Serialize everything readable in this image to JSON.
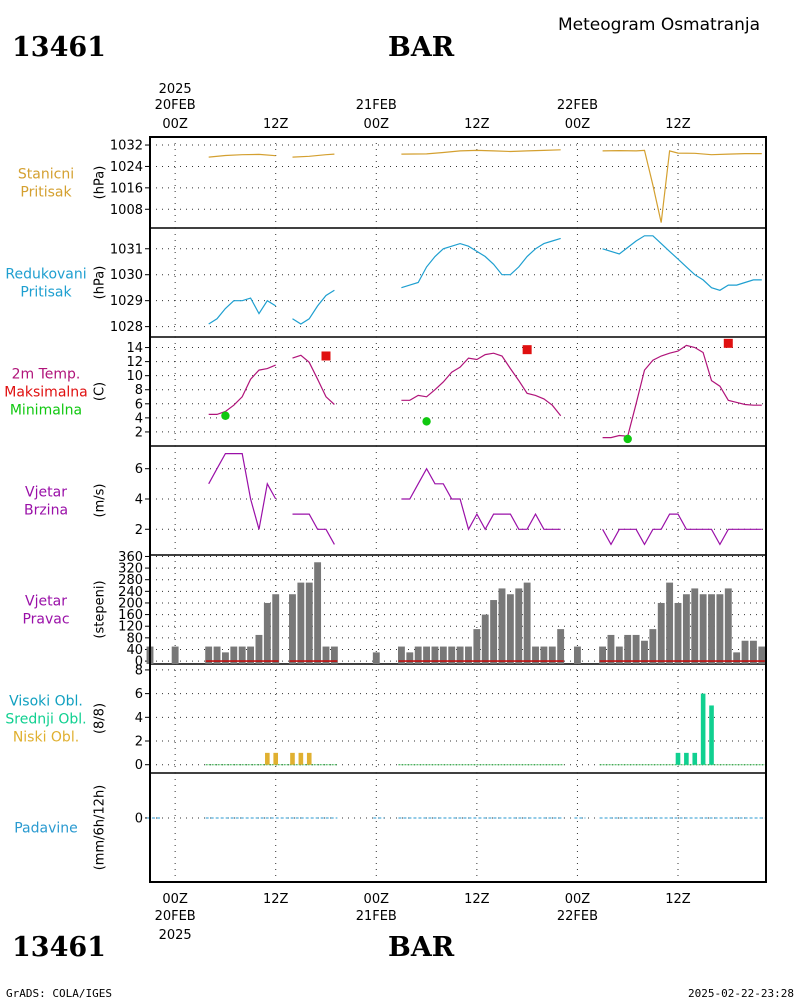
{
  "header": {
    "station_id": "13461",
    "station_name": "BAR",
    "title": "Meteogram Osmatranja"
  },
  "footer": {
    "station_id": "13461",
    "station_name": "BAR",
    "credit": "GrADS: COLA/IGES",
    "timestamp": "2025-02-22-23:28"
  },
  "time_axis": {
    "top_labels": [
      {
        "line1": "2025",
        "line2": "20FEB",
        "line3": "00Z",
        "hour": 0
      },
      {
        "line1": "",
        "line2": "",
        "line3": "12Z",
        "hour": 12
      },
      {
        "line1": "",
        "line2": "21FEB",
        "line3": "00Z",
        "hour": 24
      },
      {
        "line1": "",
        "line2": "",
        "line3": "12Z",
        "hour": 36
      },
      {
        "line1": "",
        "line2": "22FEB",
        "line3": "00Z",
        "hour": 48
      },
      {
        "line1": "",
        "line2": "",
        "line3": "12Z",
        "hour": 60
      }
    ],
    "bottom_labels": [
      {
        "line1": "00Z",
        "line2": "20FEB",
        "line3": "2025",
        "hour": 0
      },
      {
        "line1": "12Z",
        "line2": "",
        "line3": "",
        "hour": 12
      },
      {
        "line1": "00Z",
        "line2": "21FEB",
        "line3": "",
        "hour": 24
      },
      {
        "line1": "12Z",
        "line2": "",
        "line3": "",
        "hour": 36
      },
      {
        "line1": "00Z",
        "line2": "22FEB",
        "line3": "",
        "hour": 48
      },
      {
        "line1": "12Z",
        "line2": "",
        "line3": "",
        "hour": 60
      }
    ],
    "range_hours": [
      -3,
      70.5
    ]
  },
  "colors": {
    "pressure": "#d4a030",
    "reduced_pressure": "#1e9fd0",
    "temp": "#b0147a",
    "tmax": "#e01010",
    "tmin": "#10c810",
    "wind": "#9a10a8",
    "bars": "#787878",
    "calm": "#c01010",
    "cloud_high": "#10a0c0",
    "cloud_mid": "#10d090",
    "cloud_low": "#e0b030",
    "precip": "#2a9ad0"
  },
  "chart_data": [
    {
      "type": "line",
      "name": "panel-station-pressure",
      "labels": [
        {
          "text": "Stanicni",
          "color": "#d4a030"
        },
        {
          "text": "Pritisak",
          "color": "#d4a030"
        }
      ],
      "ylabel": "(hPa)",
      "ylim": [
        1001,
        1035
      ],
      "yticks": [
        1008,
        1016,
        1024,
        1032
      ],
      "color": "#d4a030",
      "segments": [
        {
          "x": [
            4,
            6,
            8,
            10,
            12
          ],
          "y": [
            1027.5,
            1028.1,
            1028.4,
            1028.5,
            1028.0
          ]
        },
        {
          "x": [
            14,
            16,
            18,
            19
          ],
          "y": [
            1027.5,
            1027.8,
            1028.4,
            1028.6
          ]
        },
        {
          "x": [
            27,
            30,
            32,
            34,
            36,
            38,
            40,
            42,
            44,
            46
          ],
          "y": [
            1028.6,
            1028.7,
            1029.2,
            1029.8,
            1030.0,
            1029.8,
            1029.6,
            1029.8,
            1030.0,
            1030.2
          ]
        },
        {
          "x": [
            51,
            53,
            55,
            56,
            57,
            58,
            59,
            60,
            62,
            64,
            66,
            68,
            70
          ],
          "y": [
            1029.8,
            1029.9,
            1029.8,
            1030.0,
            1017.0,
            1003.0,
            1029.8,
            1029.0,
            1028.9,
            1028.4,
            1028.6,
            1028.8,
            1028.8
          ]
        }
      ]
    },
    {
      "type": "line",
      "name": "panel-reduced-pressure",
      "labels": [
        {
          "text": "Redukovani",
          "color": "#1e9fd0"
        },
        {
          "text": "Pritisak",
          "color": "#1e9fd0"
        }
      ],
      "ylabel": "(hPa)",
      "ylim": [
        1027.6,
        1031.8
      ],
      "yticks": [
        1028,
        1029,
        1030,
        1031
      ],
      "color": "#1e9fd0",
      "segments": [
        {
          "x": [
            4,
            5,
            6,
            7,
            8,
            9,
            10,
            11,
            12
          ],
          "y": [
            1028.1,
            1028.3,
            1028.7,
            1029.0,
            1029.0,
            1029.1,
            1028.5,
            1029.0,
            1028.8
          ]
        },
        {
          "x": [
            14,
            15,
            16,
            17,
            18,
            19
          ],
          "y": [
            1028.3,
            1028.1,
            1028.3,
            1028.8,
            1029.2,
            1029.4
          ]
        },
        {
          "x": [
            27,
            28,
            29,
            30,
            31,
            32,
            33,
            34,
            35,
            36,
            37,
            38,
            39,
            40,
            41,
            42,
            43,
            44,
            45,
            46
          ],
          "y": [
            1029.5,
            1029.6,
            1029.7,
            1030.3,
            1030.7,
            1031.0,
            1031.1,
            1031.2,
            1031.1,
            1030.9,
            1030.7,
            1030.4,
            1030.0,
            1030.0,
            1030.3,
            1030.7,
            1031.0,
            1031.2,
            1031.3,
            1031.4
          ]
        },
        {
          "x": [
            51,
            53,
            55,
            56,
            57,
            58,
            59,
            60,
            61,
            62,
            63,
            64,
            65,
            66,
            67,
            68,
            69,
            70
          ],
          "y": [
            1031.0,
            1030.8,
            1031.3,
            1031.5,
            1031.5,
            1031.2,
            1030.9,
            1030.6,
            1030.3,
            1030.0,
            1029.8,
            1029.5,
            1029.4,
            1029.6,
            1029.6,
            1029.7,
            1029.8,
            1029.8
          ]
        }
      ]
    },
    {
      "type": "line",
      "name": "panel-temperature",
      "labels": [
        {
          "text": "2m Temp.",
          "color": "#b0147a"
        },
        {
          "text": "Maksimalna",
          "color": "#e01010"
        },
        {
          "text": "Minimalna",
          "color": "#10c810"
        }
      ],
      "ylabel": "(C)",
      "ylim": [
        0,
        15.5
      ],
      "yticks": [
        2,
        4,
        6,
        8,
        10,
        12,
        14
      ],
      "color": "#b0147a",
      "segments": [
        {
          "x": [
            4,
            5,
            6,
            7,
            8,
            9,
            10,
            11,
            12
          ],
          "y": [
            4.5,
            4.5,
            4.9,
            5.8,
            7.0,
            9.5,
            10.8,
            11.0,
            11.5
          ]
        },
        {
          "x": [
            14,
            15,
            16,
            17,
            18,
            19
          ],
          "y": [
            12.5,
            12.9,
            11.9,
            9.5,
            7.0,
            5.9
          ]
        },
        {
          "x": [
            27,
            28,
            29,
            30,
            31,
            32,
            33,
            34,
            35,
            36,
            37,
            38,
            39,
            40,
            41,
            42,
            43,
            44,
            45,
            46
          ],
          "y": [
            6.5,
            6.5,
            7.2,
            7.0,
            8.0,
            9.1,
            10.5,
            11.2,
            12.5,
            12.3,
            13.0,
            13.2,
            12.8,
            11.0,
            9.3,
            7.5,
            7.2,
            6.7,
            5.8,
            4.3
          ]
        },
        {
          "x": [
            51,
            52,
            53,
            54,
            55,
            56,
            57,
            58,
            59,
            60,
            61,
            62,
            63,
            64,
            65,
            66,
            67,
            68,
            69,
            70
          ],
          "y": [
            1.2,
            1.2,
            1.5,
            1.4,
            6.0,
            10.8,
            12.2,
            12.8,
            13.2,
            13.5,
            14.3,
            14.0,
            13.3,
            9.3,
            8.5,
            6.5,
            6.2,
            5.9,
            5.8,
            5.8
          ]
        }
      ],
      "markers": [
        {
          "kind": "max",
          "x": 18,
          "y": 12.8
        },
        {
          "kind": "max",
          "x": 42,
          "y": 13.7
        },
        {
          "kind": "max",
          "x": 66,
          "y": 14.6
        },
        {
          "kind": "min",
          "x": 6,
          "y": 4.3
        },
        {
          "kind": "min",
          "x": 30,
          "y": 3.5
        },
        {
          "kind": "min",
          "x": 54,
          "y": 1.0
        }
      ]
    },
    {
      "type": "line",
      "name": "panel-wind-speed",
      "labels": [
        {
          "text": "Vjetar",
          "color": "#9a10a8"
        },
        {
          "text": "Brzina",
          "color": "#9a10a8"
        }
      ],
      "ylabel": "(m/s)",
      "ylim": [
        0.3,
        7.5
      ],
      "yticks": [
        2,
        4,
        6
      ],
      "color": "#9a10a8",
      "segments": [
        {
          "x": [
            4,
            5,
            6,
            7,
            8,
            9,
            10,
            11,
            12
          ],
          "y": [
            5,
            6,
            7,
            7,
            7,
            4,
            2,
            5,
            4
          ]
        },
        {
          "x": [
            14,
            15,
            16,
            17,
            18,
            19
          ],
          "y": [
            3,
            3,
            3,
            2,
            2,
            1
          ]
        },
        {
          "x": [
            27,
            28,
            29,
            30,
            31,
            32,
            33,
            34,
            35,
            36,
            37,
            38,
            39,
            40,
            41,
            42,
            43,
            44,
            45,
            46
          ],
          "y": [
            4,
            4,
            5,
            6,
            5,
            5,
            4,
            4,
            2,
            3,
            2,
            3,
            3,
            3,
            2,
            2,
            3,
            2,
            2,
            2
          ]
        },
        {
          "x": [
            51,
            52,
            53,
            54,
            55,
            56,
            57,
            58,
            59,
            60,
            61,
            62,
            63,
            64,
            65,
            66,
            67,
            68,
            69,
            70
          ],
          "y": [
            2,
            1,
            2,
            2,
            2,
            1,
            2,
            2,
            3,
            3,
            2,
            2,
            2,
            2,
            1,
            2,
            2,
            2,
            2,
            2
          ]
        }
      ]
    },
    {
      "type": "bar",
      "name": "panel-wind-direction",
      "labels": [
        {
          "text": "Vjetar",
          "color": "#9a10a8"
        },
        {
          "text": "Pravac",
          "color": "#9a10a8"
        }
      ],
      "ylabel": "(stepeni)",
      "ylim": [
        -10,
        365
      ],
      "yticks": [
        0,
        40,
        80,
        120,
        160,
        200,
        240,
        280,
        320,
        360
      ],
      "color": "#787878",
      "x": [
        -3,
        0,
        4,
        5,
        6,
        7,
        8,
        9,
        10,
        11,
        12,
        14,
        15,
        16,
        17,
        18,
        19,
        24,
        27,
        28,
        29,
        30,
        31,
        32,
        33,
        34,
        35,
        36,
        37,
        38,
        39,
        40,
        41,
        42,
        43,
        44,
        45,
        46,
        48,
        51,
        52,
        53,
        54,
        55,
        56,
        57,
        58,
        59,
        60,
        61,
        62,
        63,
        64,
        65,
        66,
        67,
        68,
        69,
        70
      ],
      "values": [
        50,
        50,
        50,
        50,
        30,
        50,
        50,
        50,
        90,
        200,
        230,
        230,
        270,
        270,
        340,
        50,
        50,
        30,
        50,
        30,
        50,
        50,
        50,
        50,
        50,
        50,
        50,
        110,
        160,
        210,
        250,
        230,
        250,
        270,
        50,
        50,
        50,
        110,
        50,
        50,
        90,
        50,
        90,
        90,
        70,
        110,
        200,
        270,
        200,
        230,
        250,
        230,
        230,
        230,
        250,
        30,
        70,
        70,
        50
      ],
      "calm_spans": [
        [
          4,
          12
        ],
        [
          14,
          19
        ],
        [
          27,
          46
        ],
        [
          51,
          70
        ]
      ]
    },
    {
      "type": "bar",
      "name": "panel-clouds",
      "labels": [
        {
          "text": "Visoki Obl.",
          "color": "#10a0c0"
        },
        {
          "text": "Srednji Obl.",
          "color": "#10d090"
        },
        {
          "text": "Niski Obl.",
          "color": "#e0b030"
        }
      ],
      "ylabel": "(8/8)",
      "ylim": [
        -0.7,
        8.5
      ],
      "yticks": [
        0,
        2,
        4,
        6,
        8
      ],
      "series": [
        {
          "name": "Niski Obl.",
          "color": "#e0b030",
          "x": [
            11,
            12,
            14,
            15,
            16
          ],
          "values": [
            1,
            1,
            1,
            1,
            1
          ]
        },
        {
          "name": "Srednji Obl.",
          "color": "#10d090",
          "x": [
            60,
            61,
            62,
            63,
            64
          ],
          "values": [
            1,
            1,
            1,
            6,
            5
          ]
        }
      ],
      "baseline_spans": [
        [
          4,
          19
        ],
        [
          27,
          46
        ],
        [
          51,
          70
        ]
      ]
    },
    {
      "type": "line",
      "name": "panel-precipitation",
      "labels": [
        {
          "text": "Padavine",
          "color": "#2a9ad0"
        }
      ],
      "ylabel": "(mm/6h/12h)",
      "ylim": [
        -4.7,
        3.3
      ],
      "yticks": [
        0
      ],
      "color": "#2a9ad0",
      "baseline_spans": [
        [
          -3,
          -2
        ],
        [
          4,
          19
        ],
        [
          24,
          24.6
        ],
        [
          27,
          46
        ],
        [
          48,
          48.6
        ],
        [
          51,
          70
        ]
      ]
    }
  ]
}
